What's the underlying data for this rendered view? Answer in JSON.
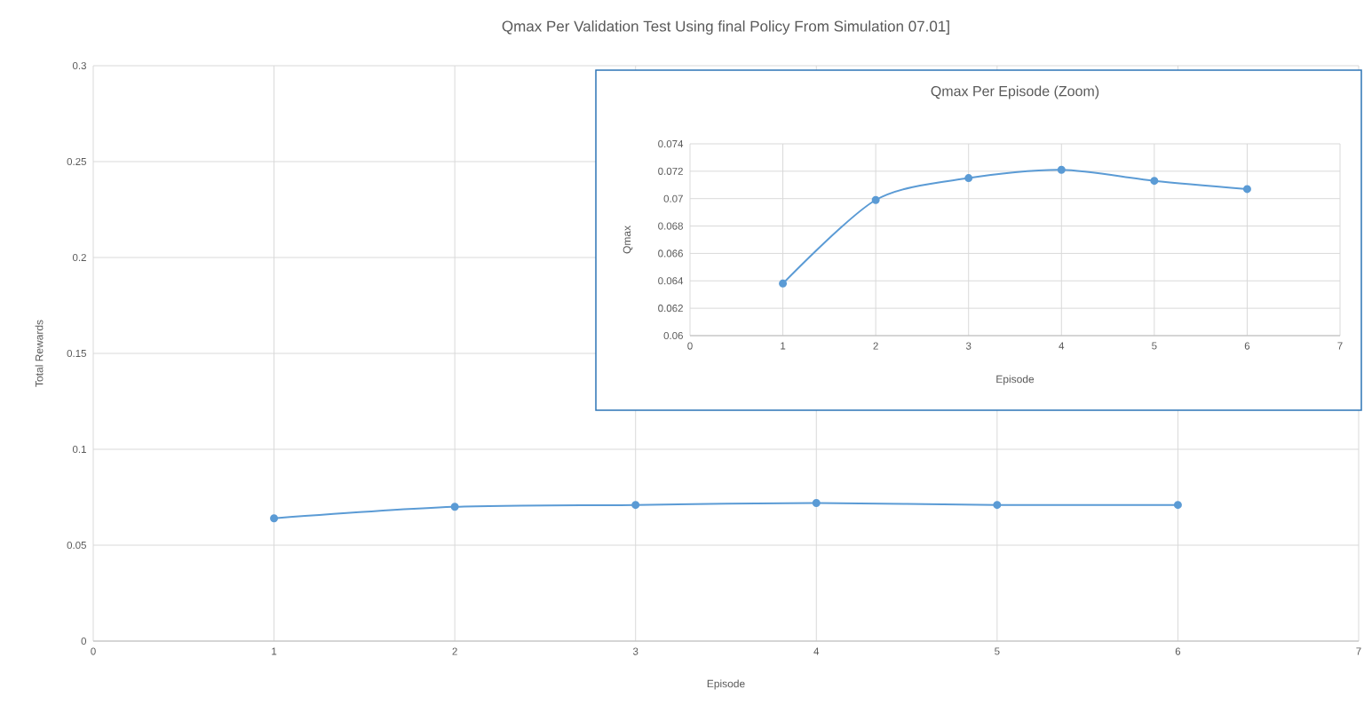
{
  "chart_data": [
    {
      "type": "line",
      "title": "Qmax Per Validation Test Using final Policy From Simulation 07.01]",
      "xlabel": "Episode",
      "ylabel": "Total Rewards",
      "x": [
        1,
        2,
        3,
        4,
        5,
        6
      ],
      "series": [
        {
          "color": "#5b9bd5",
          "values": [
            0.064,
            0.07,
            0.071,
            0.072,
            0.071,
            0.071
          ]
        }
      ],
      "xlim": [
        0,
        7
      ],
      "xticks": [
        0,
        1,
        2,
        3,
        4,
        5,
        6,
        7
      ],
      "ylim": [
        0,
        0.3
      ],
      "yticks": [
        0,
        0.05,
        0.1,
        0.15,
        0.2,
        0.25,
        0.3
      ],
      "grid": true,
      "marker": "circle"
    },
    {
      "type": "line",
      "title": "Qmax Per Episode (Zoom)",
      "xlabel": "Episode",
      "ylabel": "Qmax",
      "x": [
        1,
        2,
        3,
        4,
        5,
        6
      ],
      "series": [
        {
          "color": "#5b9bd5",
          "values": [
            0.0638,
            0.0699,
            0.0715,
            0.0721,
            0.0713,
            0.0707
          ]
        }
      ],
      "xlim": [
        0,
        7
      ],
      "xticks": [
        0,
        1,
        2,
        3,
        4,
        5,
        6,
        7
      ],
      "ylim": [
        0.06,
        0.074
      ],
      "yticks": [
        0.06,
        0.062,
        0.064,
        0.066,
        0.068,
        0.07,
        0.072,
        0.074
      ],
      "grid": true,
      "marker": "circle"
    }
  ]
}
